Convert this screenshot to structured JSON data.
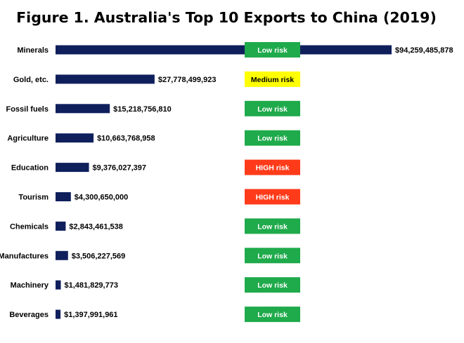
{
  "chart_data": {
    "type": "bar",
    "orientation": "horizontal",
    "title": "Figure 1. Australia's Top 10 Exports to China (2019)",
    "categories": [
      "Minerals",
      "Gold, etc.",
      "Fossil fuels",
      "Agriculture",
      "Education",
      "Tourism",
      "Chemicals",
      "Manufactures",
      "Machinery",
      "Beverages"
    ],
    "values": [
      94259485878,
      27778499923,
      15218756810,
      10663768958,
      9376027397,
      4300650000,
      2843461538,
      3506227569,
      1481829773,
      1397991961
    ],
    "value_labels": [
      "$94,259,485,878",
      "$27,778,499,923",
      "$15,218,756,810",
      "$10,663,768,958",
      "$9,376,027,397",
      "$4,300,650,000",
      "$2,843,461,538",
      "$3,506,227,569",
      "$1,481,829,773",
      "$1,397,991,961"
    ],
    "risk_labels": [
      "Low risk",
      "Medium risk",
      "Low risk",
      "Low risk",
      "HIGH risk",
      "HIGH risk",
      "Low risk",
      "Low risk",
      "Low risk",
      "Low risk"
    ],
    "risk_levels": [
      "low",
      "medium",
      "low",
      "low",
      "high",
      "high",
      "low",
      "low",
      "low",
      "low"
    ],
    "bar_color": "#0f1f5c",
    "risk_colors": {
      "low": "#1faa4b",
      "medium": "#ffff00",
      "high": "#ff3b1a"
    },
    "risk_text_colors": {
      "low": "#ffffff",
      "medium": "#000000",
      "high": "#ffffff"
    },
    "xlim": [
      0,
      94259485878
    ],
    "grid": false,
    "legend": "none"
  }
}
